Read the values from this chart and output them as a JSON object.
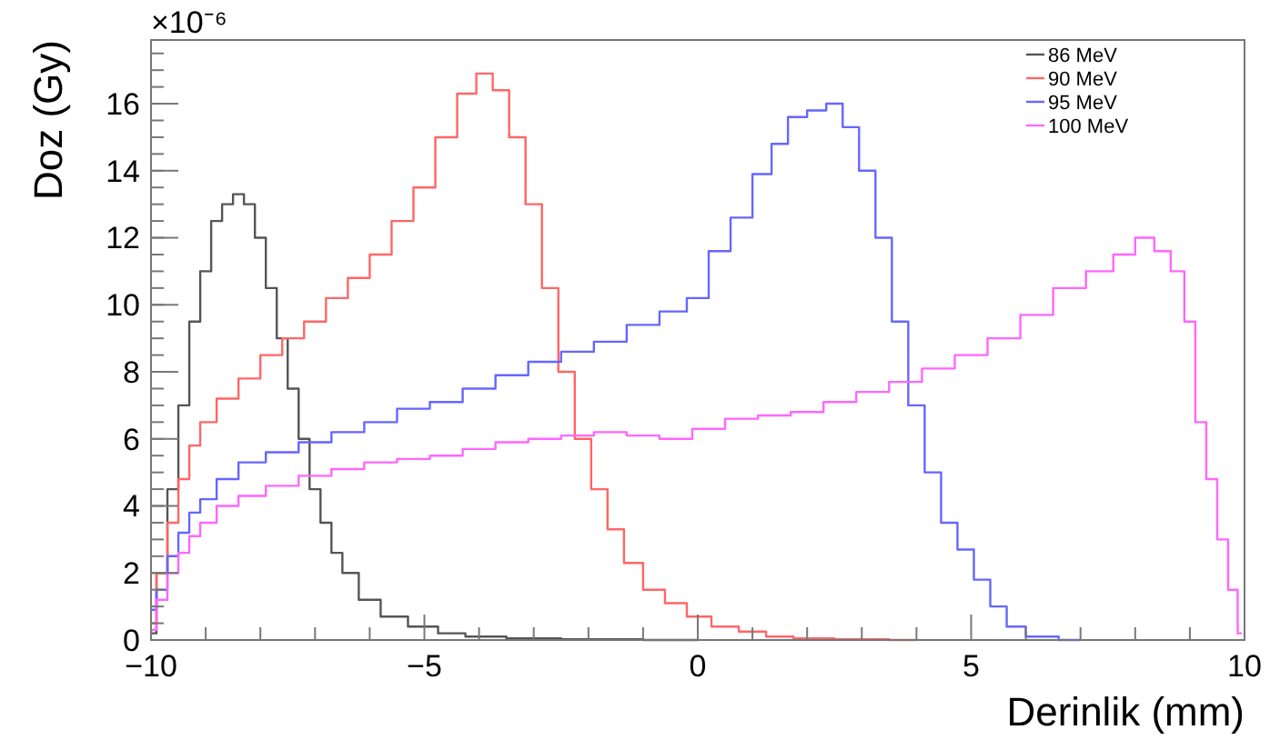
{
  "chart_data": {
    "type": "step",
    "xlabel": "Derinlik (mm)",
    "ylabel": "Doz (Gy)",
    "annotations": [
      "×10⁻⁶"
    ],
    "xlim": [
      -10,
      10
    ],
    "xticks": [
      -10,
      {
        "value": -9,
        "label": null
      },
      {
        "value": -8,
        "label": null
      },
      {
        "value": -7,
        "label": null
      },
      {
        "value": -6,
        "label": null
      },
      -5,
      {
        "value": -4,
        "label": null
      },
      {
        "value": -3,
        "label": null
      },
      {
        "value": -2,
        "label": null
      },
      {
        "value": -1,
        "label": null
      },
      0,
      {
        "value": 1,
        "label": null
      },
      {
        "value": 2,
        "label": null
      },
      {
        "value": 3,
        "label": null
      },
      {
        "value": 4,
        "label": null
      },
      5,
      {
        "value": 6,
        "label": null
      },
      {
        "value": 7,
        "label": null
      },
      {
        "value": 8,
        "label": null
      },
      {
        "value": 9,
        "label": null
      },
      10
    ],
    "ylim": [
      0,
      17.9
    ],
    "yticks": [
      0,
      2,
      4,
      6,
      8,
      10,
      12,
      14,
      16
    ],
    "grid": false,
    "legend": "top right",
    "series": [
      {
        "name": "86 MeV",
        "color": "#555555",
        "x": [
          -10,
          -9.8,
          -9.6,
          -9.4,
          -9.2,
          -9.0,
          -8.8,
          -8.6,
          -8.4,
          -8.2,
          -8.0,
          -7.8,
          -7.6,
          -7.4,
          -7.2,
          -7.0,
          -6.8,
          -6.6,
          -6.4,
          -6.0,
          -5.6,
          -5.0,
          -4.5,
          -4.0,
          -3.0,
          -2.0,
          0
        ],
        "values": [
          0.2,
          2,
          4.5,
          7,
          9.5,
          11,
          12.5,
          13,
          13.3,
          13,
          12,
          10.5,
          9,
          7.5,
          6,
          4.5,
          3.5,
          2.6,
          2,
          1.2,
          0.7,
          0.4,
          0.2,
          0.1,
          0.05,
          0.02,
          0
        ]
      },
      {
        "name": "90 MeV",
        "color": "#ff6666",
        "x": [
          -10,
          -9.8,
          -9.6,
          -9.4,
          -9.2,
          -9.0,
          -8.6,
          -8.2,
          -7.8,
          -7.4,
          -7.0,
          -6.6,
          -6.2,
          -5.8,
          -5.4,
          -5.0,
          -4.6,
          -4.2,
          -3.9,
          -3.6,
          -3.3,
          -3.0,
          -2.7,
          -2.4,
          -2.1,
          -1.8,
          -1.5,
          -1.2,
          -0.8,
          -0.4,
          0,
          0.5,
          1,
          1.5,
          2,
          3,
          4
        ],
        "values": [
          0.5,
          2,
          3.5,
          4.8,
          5.8,
          6.5,
          7.2,
          7.8,
          8.5,
          9.0,
          9.5,
          10.2,
          10.8,
          11.5,
          12.5,
          13.5,
          15,
          16.3,
          16.9,
          16.4,
          15,
          13,
          10.5,
          8,
          6,
          4.5,
          3.3,
          2.3,
          1.5,
          1.1,
          0.7,
          0.4,
          0.25,
          0.1,
          0.05,
          0.02,
          0
        ]
      },
      {
        "name": "95 MeV",
        "color": "#6666ff",
        "x": [
          -10,
          -9.8,
          -9.6,
          -9.4,
          -9.2,
          -9.0,
          -8.6,
          -8.2,
          -7.6,
          -7.0,
          -6.4,
          -5.8,
          -5.2,
          -4.6,
          -4.0,
          -3.4,
          -2.8,
          -2.2,
          -1.6,
          -1.0,
          -0.4,
          0,
          0.4,
          0.8,
          1.2,
          1.5,
          1.8,
          2.2,
          2.5,
          2.8,
          3.1,
          3.4,
          3.7,
          4.0,
          4.3,
          4.6,
          4.9,
          5.2,
          5.5,
          5.8,
          6.2,
          7
        ],
        "values": [
          0.9,
          1.5,
          2.5,
          3.2,
          3.8,
          4.2,
          4.8,
          5.3,
          5.6,
          5.9,
          6.2,
          6.5,
          6.9,
          7.1,
          7.5,
          7.9,
          8.3,
          8.6,
          8.9,
          9.4,
          9.8,
          10.2,
          11.6,
          12.6,
          13.9,
          14.8,
          15.6,
          15.8,
          16.0,
          15.3,
          14,
          12,
          9.5,
          7,
          5,
          3.5,
          2.7,
          1.8,
          1.0,
          0.4,
          0.1,
          0
        ]
      },
      {
        "name": "100 MeV",
        "color": "#ff66ff",
        "x": [
          -10,
          -9.8,
          -9.6,
          -9.4,
          -9.2,
          -9.0,
          -8.6,
          -8.2,
          -7.6,
          -7.0,
          -6.4,
          -5.8,
          -5.2,
          -4.6,
          -4.0,
          -3.4,
          -2.8,
          -2.2,
          -1.6,
          -1.0,
          -0.4,
          0.2,
          0.8,
          1.4,
          2.0,
          2.6,
          3.2,
          3.8,
          4.4,
          5.0,
          5.6,
          6.2,
          6.8,
          7.4,
          7.8,
          8.2,
          8.5,
          8.8,
          9.0,
          9.2,
          9.4,
          9.6,
          9.8,
          9.95
        ],
        "values": [
          0.3,
          1.2,
          2.0,
          2.6,
          3.1,
          3.5,
          4.0,
          4.3,
          4.6,
          4.9,
          5.1,
          5.3,
          5.4,
          5.5,
          5.7,
          5.9,
          6.0,
          6.1,
          6.2,
          6.1,
          6.0,
          6.3,
          6.6,
          6.7,
          6.8,
          7.1,
          7.4,
          7.7,
          8.1,
          8.5,
          9.0,
          9.7,
          10.5,
          11.0,
          11.5,
          12.0,
          11.6,
          11.0,
          9.5,
          6.5,
          4.8,
          3.0,
          1.5,
          0.2
        ]
      }
    ]
  }
}
